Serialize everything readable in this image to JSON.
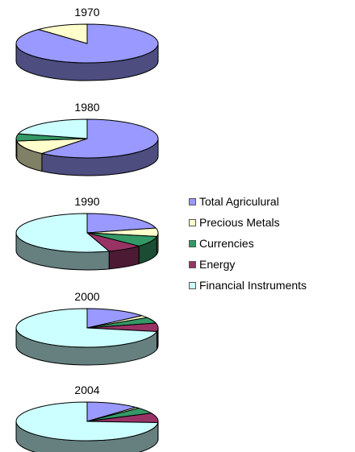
{
  "chart_data": {
    "type": "pie",
    "series": [
      {
        "name": "Total Agriculural",
        "color": "#9999ff"
      },
      {
        "name": "Precious Metals",
        "color": "#ffffcc"
      },
      {
        "name": "Currencies",
        "color": "#339966"
      },
      {
        "name": "Energy",
        "color": "#993366"
      },
      {
        "name": "Financial Instruments",
        "color": "#ccffff"
      }
    ],
    "pies": [
      {
        "title": "1970",
        "values": [
          88,
          12,
          0,
          0,
          0
        ]
      },
      {
        "title": "1980",
        "values": [
          61,
          12,
          6,
          0,
          21
        ]
      },
      {
        "title": "1990",
        "values": [
          21,
          7,
          9,
          8,
          55
        ]
      },
      {
        "title": "2000",
        "values": [
          14,
          2,
          5,
          7,
          72
        ]
      },
      {
        "title": "2004",
        "values": [
          12,
          1,
          5,
          8,
          74
        ]
      }
    ],
    "legend_position": "right"
  }
}
